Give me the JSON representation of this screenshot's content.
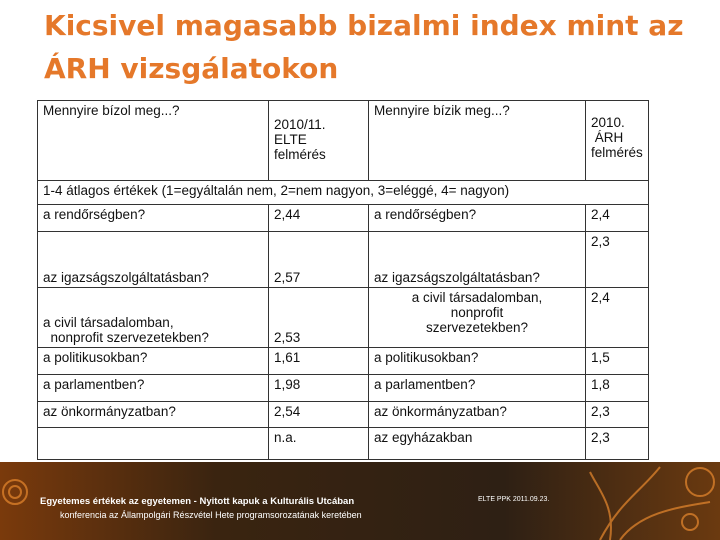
{
  "title": "Kicsivel magasabb bizalmi index mint az ÁRH vizsgálatokon",
  "table": {
    "header": [
      [
        "Mennyire bízol meg...?"
      ],
      [
        "2010/11.",
        "ELTE",
        "felmérés"
      ],
      [
        "Mennyire bízik meg...?"
      ],
      [
        "2010.",
        " ÁRH",
        "felmérés"
      ]
    ],
    "note": "1-4 átlagos értékek (1=egyáltalán nem, 2=nem nagyon, 3=eléggé, 4= nagyon)",
    "rows": [
      [
        "a rendőrségben?",
        "2,44",
        "a rendőrségben?",
        "2,4"
      ],
      [
        "az igazságszolgáltatásban?",
        "2,57",
        "az igazságszolgáltatásban?",
        "2,3"
      ],
      [
        [
          "a civil társadalomban,",
          "  nonprofit szervezetekben?"
        ],
        "2,53",
        [
          "a civil társadalomban,",
          "nonprofit",
          "szervezetekben?"
        ],
        "2,4"
      ],
      [
        "a politikusokban?",
        "1,61",
        "a politikusokban?",
        "1,5"
      ],
      [
        "a parlamentben?",
        "1,98",
        "a parlamentben?",
        "1,8"
      ],
      [
        "az önkormányzatban?",
        "2,54",
        "az önkormányzatban?",
        "2,3"
      ],
      [
        null,
        "n.a.",
        "az egyházakban",
        "2,3"
      ]
    ]
  },
  "footer": {
    "line1": "Egyetemes értékek az egyetemen - Nyitott kapuk a Kulturális Utcában",
    "line2": "konferencia az Állampolgári Részvétel Hete programsorozatának keretében",
    "date": "ELTE PPK 2011.09.23."
  }
}
